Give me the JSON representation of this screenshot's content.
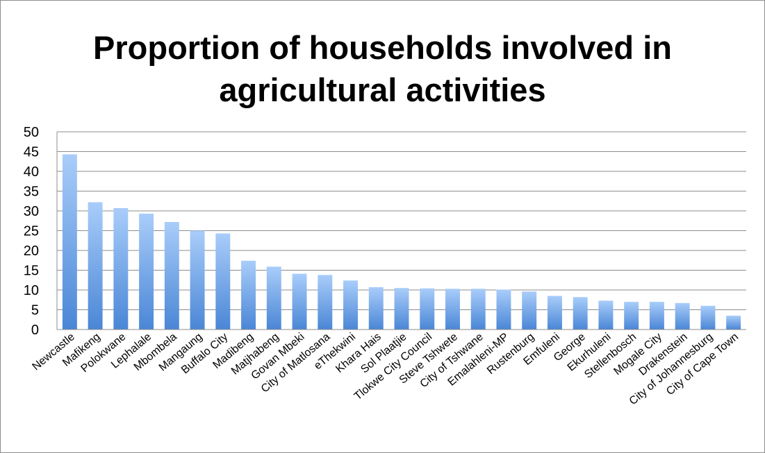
{
  "chart_data": {
    "type": "bar",
    "title": "Proportion of households involved in agricultural activities",
    "xlabel": "",
    "ylabel": "",
    "ylim": [
      0,
      50
    ],
    "yticks": [
      0,
      5,
      10,
      15,
      20,
      25,
      30,
      35,
      40,
      45,
      50
    ],
    "grid": true,
    "legend": "none",
    "bar_color_top": "#a9cdfa",
    "bar_color_bottom": "#4a86d6",
    "categories": [
      "Newcastle",
      "Mafikeng",
      "Polokwane",
      "Lephalale",
      "Mbombela",
      "Mangaung",
      "Buffalo City",
      "Madibeng",
      "Matjhabeng",
      "Govan Mbeki",
      "City of Matlosana",
      "eThekwini",
      "Khara Hais",
      "Sol Plaatjie",
      "Tlokwe City Council",
      "Steve Tshwete",
      "City of Tshwane",
      "Emalahleni-MP",
      "Rustenburg",
      "Emfuleni",
      "George",
      "Ekurhuleni",
      "Stellenbosch",
      "Mogale City",
      "Drakenstein",
      "City of Johannesburg",
      "City of Cape Town"
    ],
    "values": [
      44.3,
      32.2,
      30.7,
      29.3,
      27.2,
      25.0,
      24.3,
      17.4,
      15.9,
      14.1,
      13.8,
      12.4,
      10.7,
      10.5,
      10.4,
      10.3,
      10.3,
      10.1,
      9.6,
      8.5,
      8.2,
      7.3,
      7.0,
      7.0,
      6.7,
      6.0,
      3.5
    ]
  }
}
